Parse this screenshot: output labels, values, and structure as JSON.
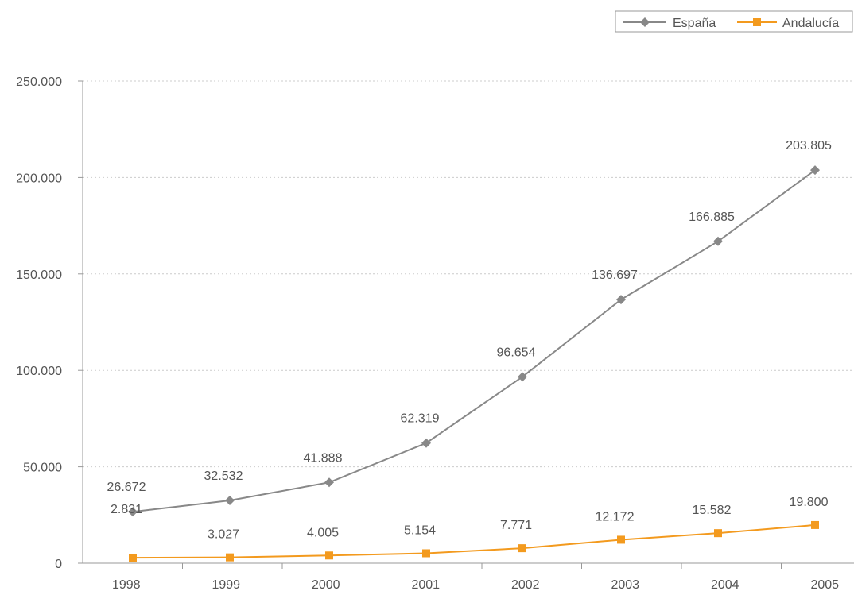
{
  "chart_data": {
    "type": "line",
    "categories": [
      "1998",
      "1999",
      "2000",
      "2001",
      "2002",
      "2003",
      "2004",
      "2005"
    ],
    "series": [
      {
        "name": "España",
        "color": "#888888",
        "marker": "diamond",
        "values": [
          26672,
          32532,
          41888,
          62319,
          96654,
          136697,
          166885,
          203805
        ],
        "labels": [
          "26.672",
          "32.532",
          "41.888",
          "62.319",
          "96.654",
          "136.697",
          "166.885",
          "203.805"
        ]
      },
      {
        "name": "Andalucía",
        "color": "#f39a1e",
        "marker": "square",
        "values": [
          2831,
          3027,
          4005,
          5154,
          7771,
          12172,
          15582,
          19800
        ],
        "labels": [
          "2.831",
          "3.027",
          "4.005",
          "5.154",
          "7.771",
          "12.172",
          "15.582",
          "19.800"
        ]
      }
    ],
    "ylim": [
      0,
      250000
    ],
    "yticks": [
      0,
      50000,
      100000,
      150000,
      200000,
      250000
    ],
    "ytick_labels": [
      "0",
      "50.000",
      "100.000",
      "150.000",
      "200.000",
      "250.000"
    ],
    "grid": true,
    "legend_position": "top-right",
    "title": "",
    "xlabel": "",
    "ylabel": ""
  }
}
